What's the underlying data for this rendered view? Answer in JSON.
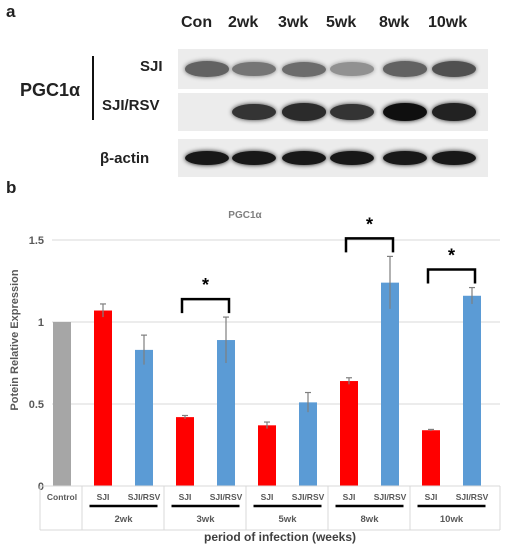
{
  "panel_a": {
    "letter": "a",
    "lanes": [
      "Con",
      "2wk",
      "3wk",
      "5wk",
      "8wk",
      "10wk"
    ],
    "protein_label": "PGC1α",
    "rows": [
      {
        "label": "SJI",
        "band_intensity": [
          0.55,
          0.45,
          0.5,
          0.3,
          0.55,
          0.65
        ]
      },
      {
        "label": "SJI/RSV",
        "band_intensity": [
          0,
          0.8,
          0.85,
          0.8,
          1.0,
          0.9
        ]
      },
      {
        "label": "β-actin",
        "band_intensity": [
          0.95,
          0.95,
          0.95,
          0.95,
          0.95,
          0.95
        ]
      }
    ]
  },
  "panel_b": {
    "letter": "b",
    "chart_data": {
      "type": "bar",
      "title": "PGC1α",
      "ylabel": "Potein Relative Expression",
      "xlabel": "period of infection (weeks)",
      "ylim": [
        0,
        1.5
      ],
      "yticks": [
        "0",
        "0.5",
        "1",
        "1.5"
      ],
      "grid": true,
      "bars": [
        {
          "label": "Control",
          "group": "",
          "value": 1.0,
          "error": 0,
          "color": "#a6a6a6"
        },
        {
          "label": "SJI",
          "group": "2wk",
          "value": 1.07,
          "error": 0.04,
          "color": "#ff0000"
        },
        {
          "label": "SJI/RSV",
          "group": "2wk",
          "value": 0.83,
          "error": 0.09,
          "color": "#5b9bd5"
        },
        {
          "label": "SJI",
          "group": "3wk",
          "value": 0.42,
          "error": 0.01,
          "color": "#ff0000"
        },
        {
          "label": "SJI/RSV",
          "group": "3wk",
          "value": 0.89,
          "error": 0.14,
          "color": "#5b9bd5"
        },
        {
          "label": "SJI",
          "group": "5wk",
          "value": 0.37,
          "error": 0.02,
          "color": "#ff0000"
        },
        {
          "label": "SJI/RSV",
          "group": "5wk",
          "value": 0.51,
          "error": 0.06,
          "color": "#5b9bd5"
        },
        {
          "label": "SJI",
          "group": "8wk",
          "value": 0.64,
          "error": 0.02,
          "color": "#ff0000"
        },
        {
          "label": "SJI/RSV",
          "group": "8wk",
          "value": 1.24,
          "error": 0.16,
          "color": "#5b9bd5"
        },
        {
          "label": "SJI",
          "group": "10wk",
          "value": 0.34,
          "error": 0.005,
          "color": "#ff0000"
        },
        {
          "label": "SJI/RSV",
          "group": "10wk",
          "value": 1.16,
          "error": 0.05,
          "color": "#5b9bd5"
        }
      ],
      "groups": [
        "2wk",
        "3wk",
        "5wk",
        "8wk",
        "10wk"
      ],
      "significance": [
        {
          "group": "3wk",
          "symbol": "*"
        },
        {
          "group": "8wk",
          "symbol": "*"
        },
        {
          "group": "10wk",
          "symbol": "*"
        }
      ]
    }
  }
}
